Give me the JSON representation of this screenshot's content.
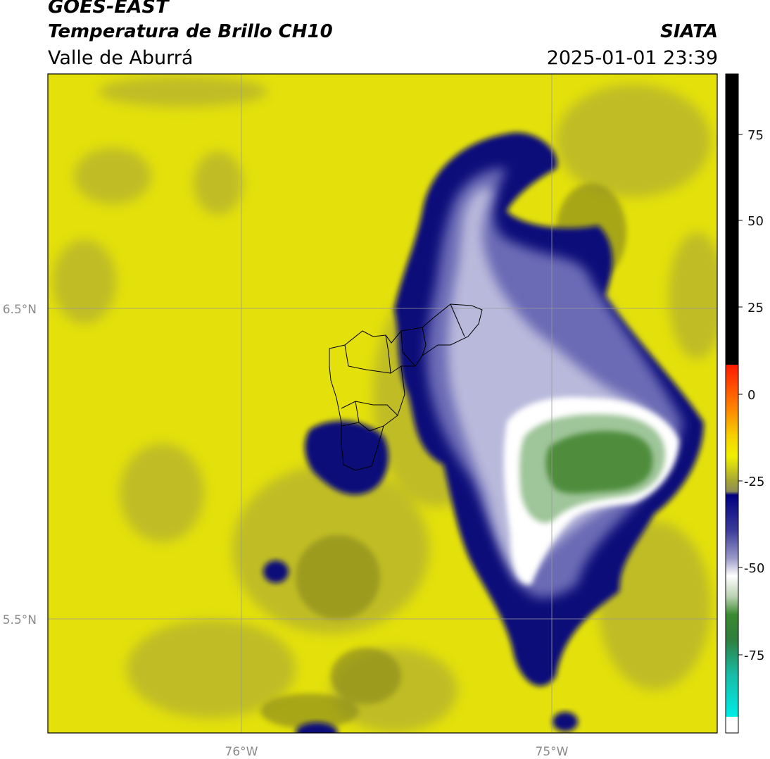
{
  "header": {
    "satellite": "GOES-EAST",
    "product": "Temperatura de Brillo CH10",
    "region": "Valle de Aburrá",
    "organization": "SIATA",
    "datetime": "2025-01-01 23:39"
  },
  "map": {
    "lon_ticks": [
      "76°W",
      "75°W"
    ],
    "lat_ticks": [
      "6.5°N",
      "5.5°N"
    ],
    "background_color": "#e3e00c",
    "storm_core_color": "#0a0a7a",
    "cold_top_color": "#4f8d3c"
  },
  "colorbar": {
    "tick_labels": [
      "75",
      "50",
      "25",
      "0",
      "-25",
      "-50",
      "-75"
    ],
    "colors": {
      "warmest": "#000000",
      "red": "#ff1a00",
      "orange": "#ff8a00",
      "yellow": "#f5f000",
      "olive": "#a0a033",
      "navy": "#000080",
      "white": "#ffffff",
      "green": "#3a8a30",
      "cyan": "#00e6e0"
    }
  }
}
